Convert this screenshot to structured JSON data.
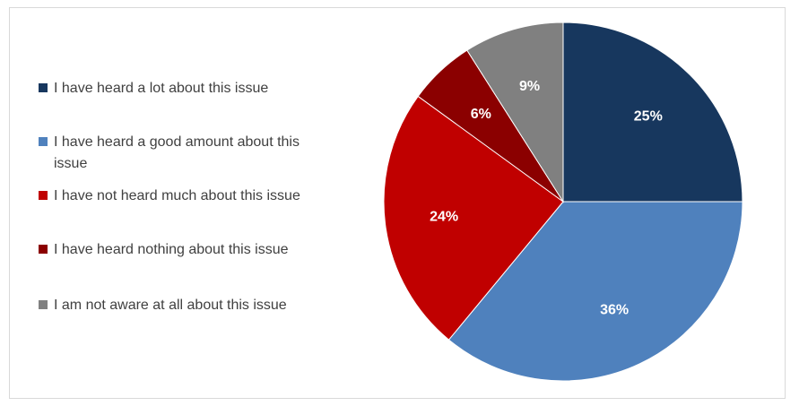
{
  "chart_data": {
    "type": "pie",
    "title": "",
    "slices": [
      {
        "label": "I have heard a lot about this issue",
        "value": 25,
        "value_label": "25%",
        "color": "#17375E"
      },
      {
        "label": "I have heard a good amount about this issue",
        "value": 36,
        "value_label": "36%",
        "color": "#4F81BD"
      },
      {
        "label": "I have not heard much about this issue",
        "value": 24,
        "value_label": "24%",
        "color": "#C00000"
      },
      {
        "label": "I have heard nothing about this issue",
        "value": 6,
        "value_label": "6%",
        "color": "#8B0000"
      },
      {
        "label": "I am not aware at all about this issue",
        "value": 9,
        "value_label": "9%",
        "color": "#808080"
      }
    ],
    "start_angle": "12 o'clock",
    "direction": "clockwise",
    "legend_position": "left"
  }
}
